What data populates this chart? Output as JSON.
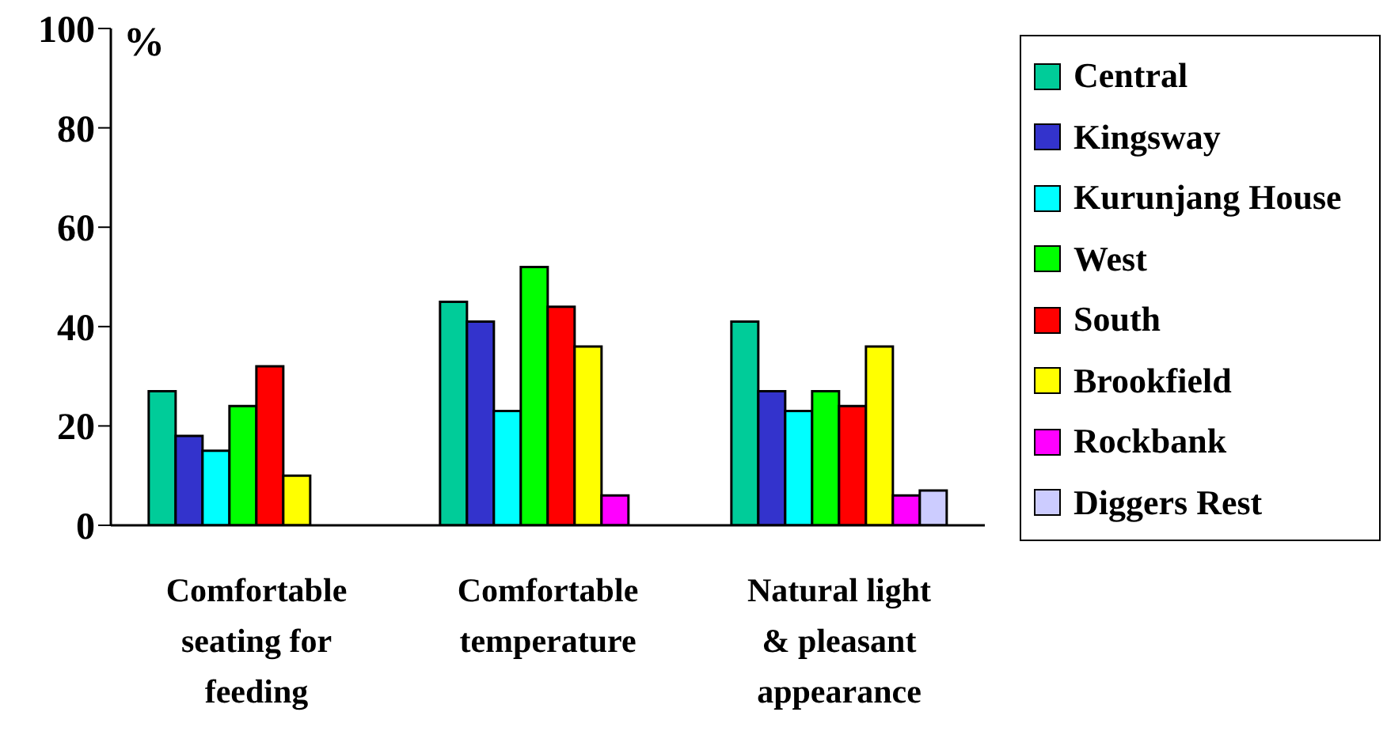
{
  "chart_data": {
    "type": "bar",
    "ylabel": "%",
    "categories": [
      "Comfortable seating for feeding",
      "Comfortable temperature",
      "Natural light & pleasant appearance"
    ],
    "series": [
      {
        "name": "Central",
        "color": "#00cc99",
        "values": [
          27,
          45,
          41
        ]
      },
      {
        "name": "Kingsway",
        "color": "#3333cc",
        "values": [
          18,
          41,
          27
        ]
      },
      {
        "name": "Kurunjang House",
        "color": "#00ffff",
        "values": [
          15,
          23,
          23
        ]
      },
      {
        "name": "West",
        "color": "#00ff00",
        "values": [
          24,
          52,
          27
        ]
      },
      {
        "name": "South",
        "color": "#ff0000",
        "values": [
          32,
          44,
          24
        ]
      },
      {
        "name": "Brookfield",
        "color": "#ffff00",
        "values": [
          10,
          36,
          36
        ]
      },
      {
        "name": "Rockbank",
        "color": "#ff00ff",
        "values": [
          null,
          6,
          6
        ]
      },
      {
        "name": "Diggers Rest",
        "color": "#ccccff",
        "values": [
          null,
          null,
          7
        ]
      }
    ],
    "ylim": [
      0,
      100
    ],
    "yticks": [
      0,
      20,
      40,
      60,
      80,
      100
    ],
    "grid": false,
    "legend": "right"
  }
}
